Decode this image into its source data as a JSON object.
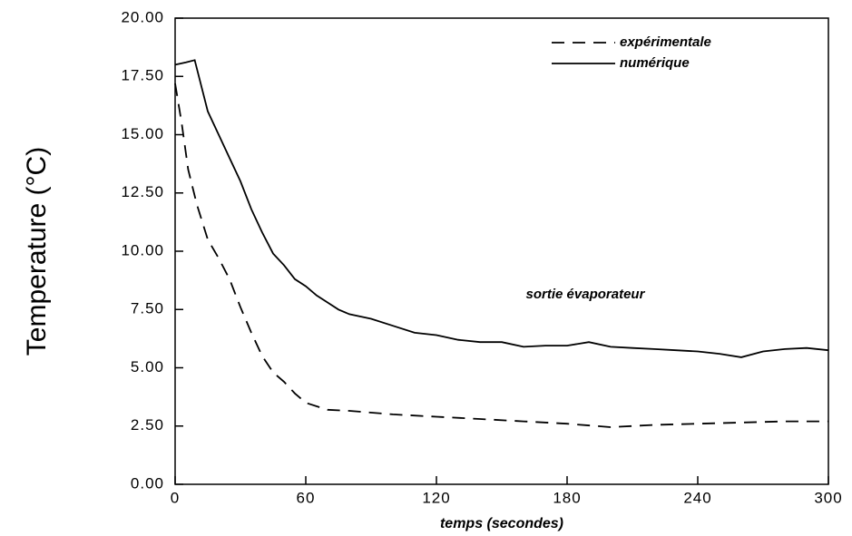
{
  "chart_data": {
    "type": "line",
    "ylabel": "Temperature  (°C)",
    "xlabel": "temps (secondes)",
    "annotation": "sortie évaporateur",
    "xlim": [
      0,
      300
    ],
    "xticks": [
      0,
      60,
      120,
      180,
      240,
      300
    ],
    "ylim": [
      0,
      20
    ],
    "yticks": [
      {
        "value": 0,
        "label": "0.00"
      },
      {
        "value": 2.5,
        "label": "2.50"
      },
      {
        "value": 5,
        "label": "5.00"
      },
      {
        "value": 7.5,
        "label": "7.50"
      },
      {
        "value": 10,
        "label": "10.00"
      },
      {
        "value": 12.5,
        "label": "12.50"
      },
      {
        "value": 15,
        "label": "15.00"
      },
      {
        "value": 17.5,
        "label": "17.50"
      },
      {
        "value": 20,
        "label": "20.00"
      }
    ],
    "legend": "upper right",
    "series": [
      {
        "name": "expérimentale",
        "color": "#000000",
        "dash": true,
        "x": [
          0,
          3,
          6,
          10,
          15,
          20,
          25,
          30,
          35,
          40,
          45,
          50,
          55,
          60,
          70,
          80,
          100,
          120,
          140,
          160,
          180,
          200,
          220,
          240,
          260,
          280,
          300
        ],
        "values": [
          17.2,
          15.5,
          13.5,
          12.0,
          10.5,
          9.7,
          8.8,
          7.6,
          6.5,
          5.5,
          4.8,
          4.4,
          3.9,
          3.5,
          3.2,
          3.15,
          3.0,
          2.9,
          2.8,
          2.7,
          2.6,
          2.45,
          2.55,
          2.6,
          2.65,
          2.7,
          2.7
        ]
      },
      {
        "name": "numérique",
        "color": "#000000",
        "dash": false,
        "x": [
          0,
          5,
          9,
          15,
          20,
          25,
          30,
          35,
          40,
          45,
          50,
          55,
          60,
          65,
          70,
          75,
          80,
          90,
          100,
          110,
          120,
          130,
          140,
          150,
          160,
          170,
          180,
          190,
          200,
          210,
          220,
          230,
          240,
          250,
          260,
          270,
          280,
          290,
          300
        ],
        "values": [
          18.0,
          18.1,
          18.2,
          16.0,
          15.0,
          14.0,
          13.0,
          11.8,
          10.8,
          9.9,
          9.4,
          8.8,
          8.5,
          8.1,
          7.8,
          7.5,
          7.3,
          7.1,
          6.8,
          6.5,
          6.4,
          6.2,
          6.1,
          6.1,
          5.9,
          5.95,
          5.95,
          6.1,
          5.9,
          5.85,
          5.8,
          5.75,
          5.7,
          5.6,
          5.45,
          5.7,
          5.8,
          5.85,
          5.75
        ]
      }
    ]
  }
}
